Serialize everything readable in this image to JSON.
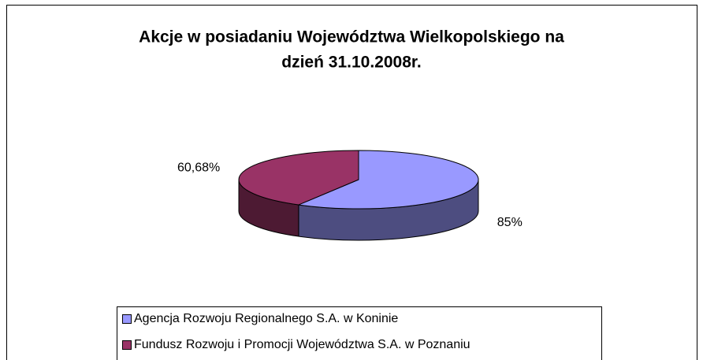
{
  "chart_data": {
    "type": "pie3d",
    "title_lines": [
      "Akcje w posiadaniu Województwa Wielkopolskiego na",
      "dzień 31.10.2008r."
    ],
    "categories": [
      "Agencja Rozwoju Regionalnego S.A. w Koninie",
      "Fundusz Rozwoju i Promocji Województwa S.A. w Poznaniu"
    ],
    "values": [
      85,
      60.68
    ],
    "value_labels": [
      "85%",
      "60,68%"
    ],
    "colors": [
      "#9999ff",
      "#993366"
    ],
    "side_colors": [
      "#4d4d80",
      "#4d1a33"
    ]
  }
}
